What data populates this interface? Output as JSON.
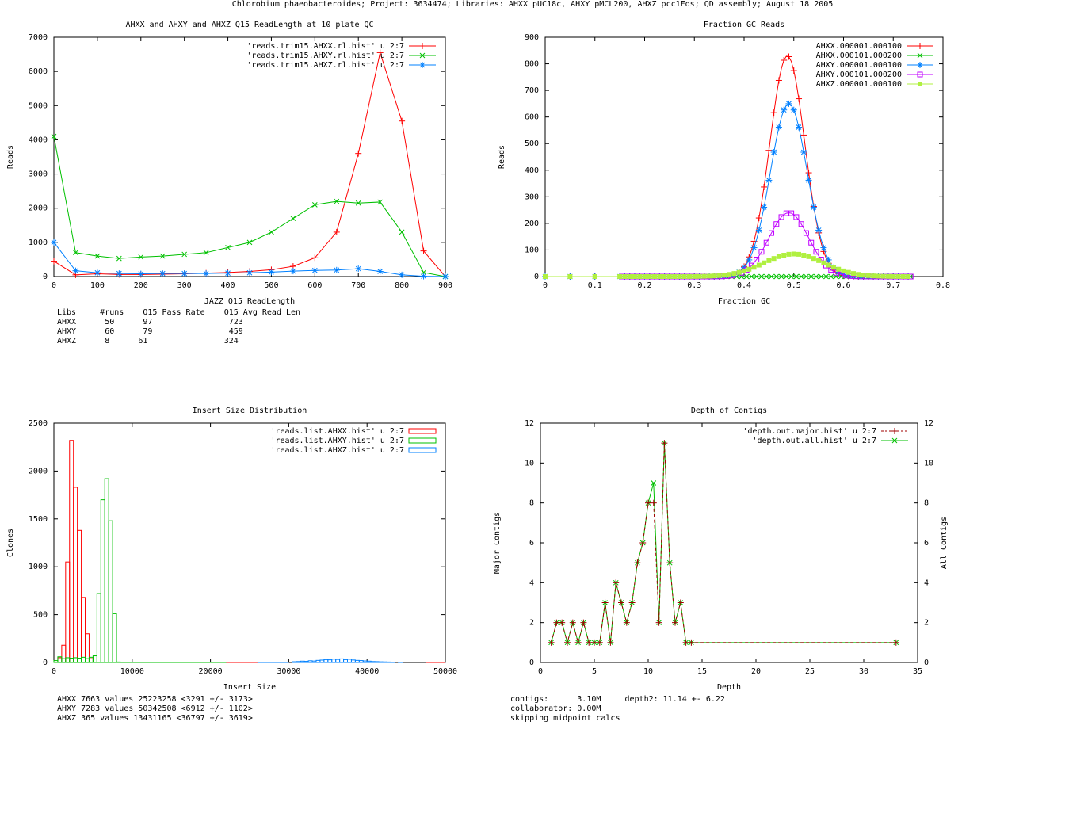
{
  "page_title": "Chlorobium phaeobacteroides; Project: 3634474; Libraries: AHXX pUC18c, AHXY pMCL200, AHXZ pcc1Fos; QD assembly; August 18 2005",
  "colors": {
    "red": "#ff0000",
    "green": "#00c000",
    "blue": "#0080ff",
    "magenta": "#c000ff",
    "lime": "#b0f040",
    "darkred": "#a00000"
  },
  "chart_data": [
    {
      "type": "line",
      "title": "AHXX and AHXY and AHXZ Q15 ReadLength at 10 plate QC",
      "xlabel": "JAZZ Q15 ReadLength",
      "ylabel": "Reads",
      "xlim": [
        0,
        900
      ],
      "ylim": [
        0,
        7000
      ],
      "xticks": [
        0,
        100,
        200,
        300,
        400,
        500,
        600,
        700,
        800,
        900
      ],
      "yticks": [
        0,
        1000,
        2000,
        3000,
        4000,
        5000,
        6000,
        7000
      ],
      "x": [
        0,
        50,
        100,
        150,
        200,
        250,
        300,
        350,
        400,
        450,
        500,
        550,
        600,
        650,
        700,
        750,
        800,
        850,
        900
      ],
      "series": [
        {
          "name": "'reads.trim15.AHXX.rl.hist' u 2:7",
          "color": "red",
          "marker": "plus",
          "values": [
            450,
            50,
            80,
            60,
            60,
            70,
            80,
            100,
            120,
            150,
            200,
            300,
            550,
            1300,
            3600,
            6550,
            4550,
            750,
            0
          ]
        },
        {
          "name": "'reads.trim15.AHXY.rl.hist' u 2:7",
          "color": "green",
          "marker": "x",
          "values": [
            4100,
            700,
            600,
            530,
            570,
            600,
            650,
            700,
            850,
            1000,
            1300,
            1700,
            2100,
            2200,
            2150,
            2180,
            1300,
            120,
            0
          ]
        },
        {
          "name": "'reads.trim15.AHXZ.rl.hist' u 2:7",
          "color": "blue",
          "marker": "star",
          "values": [
            1000,
            170,
            110,
            90,
            80,
            90,
            90,
            90,
            100,
            110,
            130,
            160,
            180,
            190,
            230,
            150,
            50,
            10,
            0
          ]
        }
      ]
    },
    {
      "type": "line",
      "title": "Fraction GC Reads",
      "xlabel": "Fraction GC",
      "ylabel": "Reads",
      "xlim": [
        0,
        0.8
      ],
      "ylim": [
        0,
        900
      ],
      "xticks": [
        0,
        0.1,
        0.2,
        0.3,
        0.4,
        0.5,
        0.6,
        0.7,
        0.8
      ],
      "yticks": [
        0,
        100,
        200,
        300,
        400,
        500,
        600,
        700,
        800,
        900
      ],
      "series": [
        {
          "name": "AHXX.000001.000100",
          "color": "red",
          "marker": "plus",
          "mu": 0.487,
          "peak": 830,
          "sigma": 0.035
        },
        {
          "name": "AHXX.000101.000200",
          "color": "green",
          "marker": "x",
          "mu": 0.487,
          "peak": 0,
          "sigma": 0.035
        },
        {
          "name": "AHXY.000001.000100",
          "color": "blue",
          "marker": "star",
          "mu": 0.49,
          "peak": 650,
          "sigma": 0.037
        },
        {
          "name": "AHXY.000101.000200",
          "color": "magenta",
          "marker": "box",
          "mu": 0.49,
          "peak": 240,
          "sigma": 0.04
        },
        {
          "name": "AHXZ.000001.000100",
          "color": "lime",
          "marker": "fbox",
          "mu": 0.5,
          "peak": 85,
          "sigma": 0.06
        }
      ]
    },
    {
      "type": "bar",
      "title": "Insert Size Distribution",
      "xlabel": "Insert Size",
      "ylabel": "Clones",
      "xlim": [
        0,
        50000
      ],
      "ylim": [
        0,
        2500
      ],
      "xticks": [
        0,
        10000,
        20000,
        30000,
        40000,
        50000
      ],
      "yticks": [
        0,
        500,
        1000,
        1500,
        2000,
        2500
      ],
      "bin_width": 500,
      "series": [
        {
          "name": "'reads.list.AHXX.hist' u 2:7",
          "color": "red",
          "bins": [
            [
              500,
              50
            ],
            [
              1000,
              180
            ],
            [
              1500,
              1050
            ],
            [
              2000,
              2320
            ],
            [
              2500,
              1830
            ],
            [
              3000,
              1380
            ],
            [
              3500,
              680
            ],
            [
              4000,
              300
            ],
            [
              4500,
              40
            ]
          ]
        },
        {
          "name": "'reads.list.AHXY.hist' u 2:7",
          "color": "green",
          "bins": [
            [
              0,
              20
            ],
            [
              500,
              60
            ],
            [
              1000,
              40
            ],
            [
              1500,
              50
            ],
            [
              2000,
              45
            ],
            [
              2500,
              50
            ],
            [
              3000,
              45
            ],
            [
              3500,
              55
            ],
            [
              4000,
              40
            ],
            [
              4500,
              55
            ],
            [
              5000,
              70
            ],
            [
              5500,
              720
            ],
            [
              6000,
              1700
            ],
            [
              6500,
              1920
            ],
            [
              7000,
              1480
            ],
            [
              7500,
              510
            ],
            [
              8000,
              5
            ]
          ]
        },
        {
          "name": "'reads.list.AHXZ.hist' u 2:7",
          "color": "blue",
          "bins": [
            [
              30500,
              8
            ],
            [
              31000,
              10
            ],
            [
              31500,
              14
            ],
            [
              32000,
              12
            ],
            [
              32500,
              18
            ],
            [
              33000,
              15
            ],
            [
              33500,
              22
            ],
            [
              34000,
              25
            ],
            [
              34500,
              30
            ],
            [
              35000,
              28
            ],
            [
              35500,
              35
            ],
            [
              36000,
              32
            ],
            [
              36500,
              38
            ],
            [
              37000,
              30
            ],
            [
              37500,
              34
            ],
            [
              38000,
              26
            ],
            [
              38500,
              22
            ],
            [
              39000,
              20
            ],
            [
              39500,
              16
            ],
            [
              40000,
              14
            ],
            [
              40500,
              10
            ],
            [
              41000,
              9
            ],
            [
              41500,
              7
            ],
            [
              42000,
              6
            ],
            [
              42500,
              5
            ],
            [
              43000,
              4
            ],
            [
              44000,
              3
            ]
          ]
        }
      ]
    },
    {
      "type": "line",
      "title": "Depth of Contigs",
      "xlabel": "Depth",
      "ylabel": "Major Contigs",
      "y2label": "All Contigs",
      "xlim": [
        0,
        35
      ],
      "ylim": [
        0,
        12
      ],
      "xticks": [
        0,
        5,
        10,
        15,
        20,
        25,
        30,
        35
      ],
      "yticks": [
        0,
        2,
        4,
        6,
        8,
        10,
        12
      ],
      "x": [
        1,
        1.5,
        2,
        2.5,
        3,
        3.5,
        4,
        4.5,
        5,
        5.5,
        6,
        6.5,
        7,
        7.5,
        8,
        8.5,
        9,
        9.5,
        10,
        10.5,
        11,
        11.5,
        12,
        12.5,
        13,
        13.5,
        14,
        33
      ],
      "series": [
        {
          "name": "'depth.out.major.hist' u 2:7",
          "color": "darkred",
          "marker": "plus",
          "dashed": true,
          "values": [
            1,
            2,
            2,
            1,
            2,
            1,
            2,
            1,
            1,
            1,
            3,
            1,
            4,
            3,
            2,
            3,
            5,
            6,
            8,
            8,
            2,
            11,
            5,
            2,
            3,
            1,
            1,
            1
          ]
        },
        {
          "name": "'depth.out.all.hist' u 2:7",
          "color": "green",
          "marker": "x",
          "values": [
            1,
            2,
            2,
            1,
            2,
            1,
            2,
            1,
            1,
            1,
            3,
            1,
            4,
            3,
            2,
            3,
            5,
            6,
            8,
            9,
            2,
            11,
            5,
            2,
            3,
            1,
            1,
            1
          ]
        }
      ]
    }
  ],
  "readlength_table": {
    "header": "Libs     #runs    Q15 Pass Rate    Q15 Avg Read Len",
    "rows": [
      "AHXX      50      97                723",
      "AHXY      60      79                459",
      "AHXZ      8      61                324"
    ]
  },
  "insert_stats": [
    "AHXX 7663 values 25223258 <3291 +/- 3173>",
    "AHXY 7283 values 50342508 <6912 +/- 1102>",
    "AHXZ 365 values 13431165 <36797 +/- 3619>"
  ],
  "depth_stats": [
    "contigs:      3.10M     depth2: 11.14 +- 6.22",
    "collaborator: 0.00M",
    "skipping midpoint calcs"
  ]
}
